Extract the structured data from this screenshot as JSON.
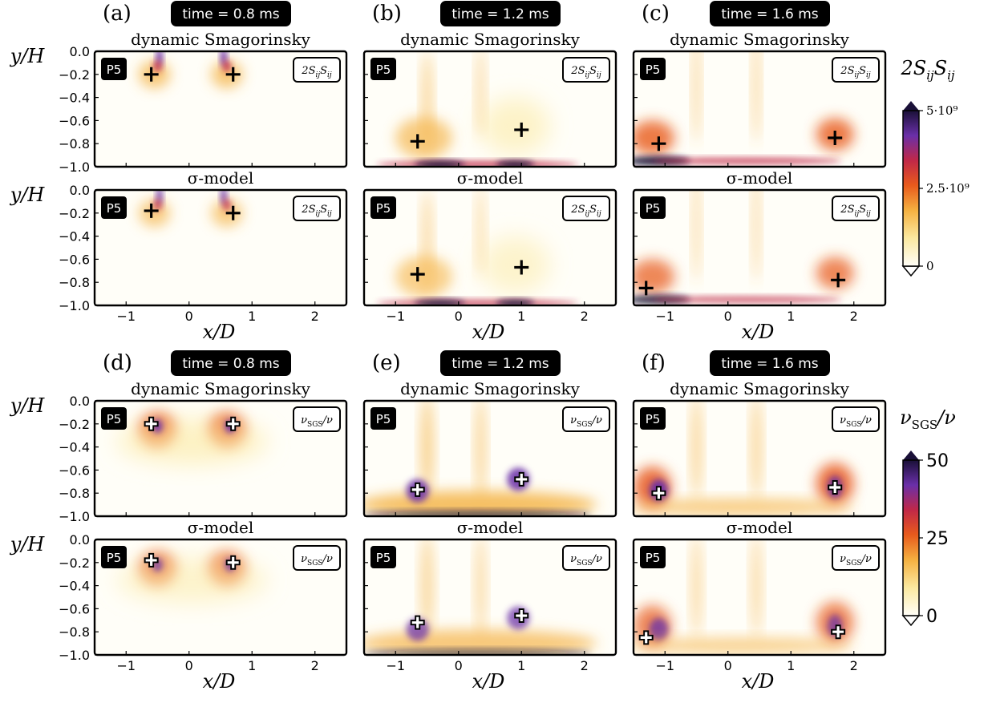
{
  "figure": {
    "top_colorbar": {
      "label": "2S_{ij}S_{ij}",
      "ticks": [
        "5·10⁹",
        "2.5·10⁹",
        "0"
      ]
    },
    "bottom_colorbar": {
      "label": "ν_SGS/ν",
      "ticks": [
        "50",
        "25",
        "0"
      ]
    },
    "panel_tag": "P5",
    "models": [
      "dynamic Smagorinsky",
      "σ-model"
    ],
    "xlabel": "x/D",
    "ylabel": "y/H",
    "x_ticks": [
      "−1",
      "0",
      "1",
      "2"
    ],
    "y_ticks": [
      "0.0",
      "−0.2",
      "−0.4",
      "−0.6",
      "−0.8",
      "−1.0"
    ]
  },
  "chart_data": [
    {
      "type": "heatmap",
      "panel": "(a)",
      "time": "time = 0.8 ms",
      "quantity": "2S_{ij}S_{ij}",
      "xlim": [
        -1.5,
        2.5
      ],
      "ylim": [
        -1.0,
        0.0
      ],
      "colorbar_range": [
        0,
        5000000000.0
      ],
      "subplots": [
        {
          "model": "dynamic Smagorinsky",
          "markers": [
            {
              "x": -0.6,
              "y": -0.2
            },
            {
              "x": 0.7,
              "y": -0.2
            }
          ]
        },
        {
          "model": "σ-model",
          "markers": [
            {
              "x": -0.6,
              "y": -0.18
            },
            {
              "x": 0.7,
              "y": -0.2
            }
          ]
        }
      ]
    },
    {
      "type": "heatmap",
      "panel": "(b)",
      "time": "time = 1.2 ms",
      "quantity": "2S_{ij}S_{ij}",
      "xlim": [
        -1.5,
        2.5
      ],
      "ylim": [
        -1.0,
        0.0
      ],
      "colorbar_range": [
        0,
        5000000000.0
      ],
      "subplots": [
        {
          "model": "dynamic Smagorinsky",
          "markers": [
            {
              "x": -0.65,
              "y": -0.78
            },
            {
              "x": 1.0,
              "y": -0.68
            }
          ]
        },
        {
          "model": "σ-model",
          "markers": [
            {
              "x": -0.65,
              "y": -0.73
            },
            {
              "x": 1.0,
              "y": -0.67
            }
          ]
        }
      ]
    },
    {
      "type": "heatmap",
      "panel": "(c)",
      "time": "time = 1.6 ms",
      "quantity": "2S_{ij}S_{ij}",
      "xlim": [
        -1.5,
        2.5
      ],
      "ylim": [
        -1.0,
        0.0
      ],
      "colorbar_range": [
        0,
        5000000000.0
      ],
      "subplots": [
        {
          "model": "dynamic Smagorinsky",
          "markers": [
            {
              "x": -1.1,
              "y": -0.8
            },
            {
              "x": 1.7,
              "y": -0.75
            }
          ]
        },
        {
          "model": "σ-model",
          "markers": [
            {
              "x": -1.3,
              "y": -0.85
            },
            {
              "x": 1.75,
              "y": -0.78
            }
          ]
        }
      ]
    },
    {
      "type": "heatmap",
      "panel": "(d)",
      "time": "time = 0.8 ms",
      "quantity": "ν_SGS/ν",
      "xlim": [
        -1.5,
        2.5
      ],
      "ylim": [
        -1.0,
        0.0
      ],
      "colorbar_range": [
        0,
        50
      ],
      "subplots": [
        {
          "model": "dynamic Smagorinsky",
          "markers": [
            {
              "x": -0.6,
              "y": -0.2
            },
            {
              "x": 0.7,
              "y": -0.2
            }
          ]
        },
        {
          "model": "σ-model",
          "markers": [
            {
              "x": -0.6,
              "y": -0.18
            },
            {
              "x": 0.7,
              "y": -0.2
            }
          ]
        }
      ]
    },
    {
      "type": "heatmap",
      "panel": "(e)",
      "time": "time = 1.2 ms",
      "quantity": "ν_SGS/ν",
      "xlim": [
        -1.5,
        2.5
      ],
      "ylim": [
        -1.0,
        0.0
      ],
      "colorbar_range": [
        0,
        50
      ],
      "subplots": [
        {
          "model": "dynamic Smagorinsky",
          "markers": [
            {
              "x": -0.65,
              "y": -0.77
            },
            {
              "x": 1.0,
              "y": -0.68
            }
          ]
        },
        {
          "model": "σ-model",
          "markers": [
            {
              "x": -0.65,
              "y": -0.72
            },
            {
              "x": 1.0,
              "y": -0.66
            }
          ]
        }
      ]
    },
    {
      "type": "heatmap",
      "panel": "(f)",
      "time": "time = 1.6 ms",
      "quantity": "ν_SGS/ν",
      "xlim": [
        -1.5,
        2.5
      ],
      "ylim": [
        -1.0,
        0.0
      ],
      "colorbar_range": [
        0,
        50
      ],
      "subplots": [
        {
          "model": "dynamic Smagorinsky",
          "markers": [
            {
              "x": -1.1,
              "y": -0.8
            },
            {
              "x": 1.7,
              "y": -0.75
            }
          ]
        },
        {
          "model": "σ-model",
          "markers": [
            {
              "x": -1.3,
              "y": -0.85
            },
            {
              "x": 1.75,
              "y": -0.8
            }
          ]
        }
      ]
    }
  ],
  "colors": {
    "cmap": [
      "#fffef8",
      "#fbe9a0",
      "#f4b040",
      "#e85a1c",
      "#c02848",
      "#6a2fa8",
      "#1a1038"
    ],
    "marker_top": "#000000",
    "marker_bottom_fill": "#ffffff"
  }
}
